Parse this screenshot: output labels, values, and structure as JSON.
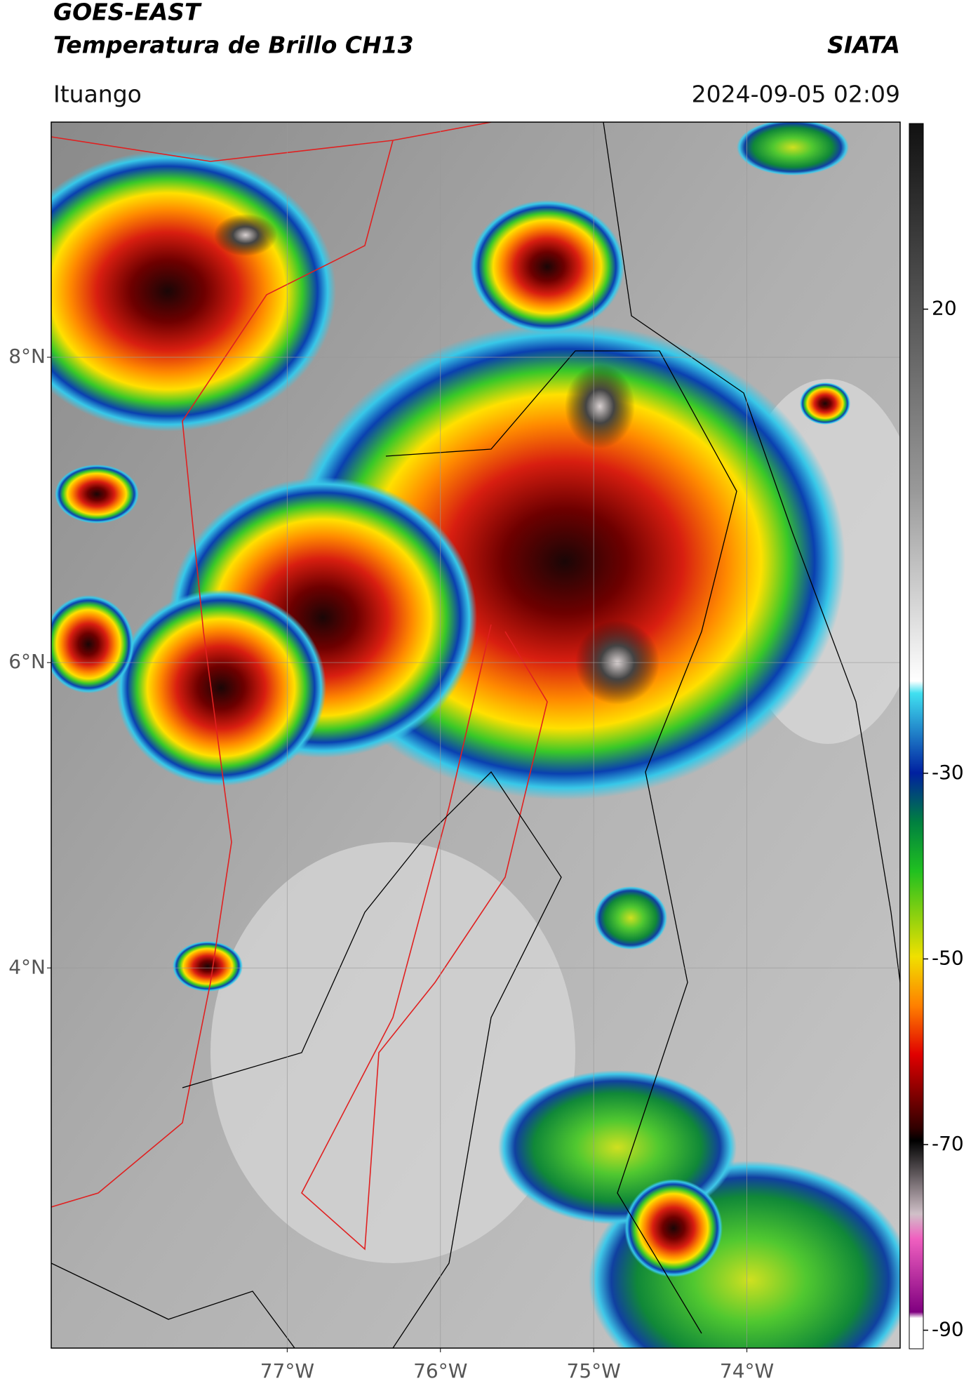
{
  "chart_data": {
    "type": "map",
    "title": "GOES-EAST",
    "subtitle": "Temperatura de Brillo CH13",
    "source": "SIATA",
    "region": "Ituango",
    "datetime": "2024-09-05 02:09",
    "xlim": [
      -78.54,
      -73.0
    ],
    "ylim": [
      1.51,
      9.54
    ],
    "xticks": [
      {
        "value": -77,
        "label": "77°W"
      },
      {
        "value": -76,
        "label": "76°W"
      },
      {
        "value": -75,
        "label": "75°W"
      },
      {
        "value": -74,
        "label": "74°W"
      }
    ],
    "yticks": [
      {
        "value": 4,
        "label": "4°N"
      },
      {
        "value": 6,
        "label": "6°N"
      },
      {
        "value": 8,
        "label": "8°N"
      }
    ],
    "grid": true,
    "colorbar": {
      "lim": [
        -92,
        40
      ],
      "ticks": [
        -90,
        -70,
        -50,
        -30,
        20
      ]
    }
  }
}
